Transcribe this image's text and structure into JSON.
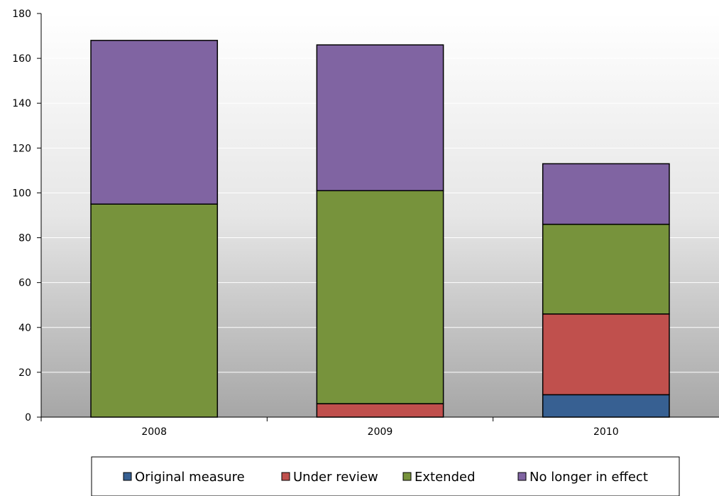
{
  "chart_data": {
    "type": "bar",
    "stacked": true,
    "categories": [
      "2008",
      "2009",
      "2010"
    ],
    "series": [
      {
        "name": "Original measure",
        "color": "#376092",
        "values": [
          0,
          0,
          10
        ]
      },
      {
        "name": "Under review",
        "color": "#C0504D",
        "values": [
          0,
          6,
          36
        ]
      },
      {
        "name": "Extended",
        "color": "#77933C",
        "values": [
          95,
          95,
          40
        ]
      },
      {
        "name": "No longer in effect",
        "color": "#8064A2",
        "values": [
          73,
          65,
          27
        ]
      }
    ],
    "ylim": [
      0,
      180
    ],
    "yticks": [
      "0",
      "20",
      "40",
      "60",
      "80",
      "100",
      "120",
      "140",
      "160",
      "180"
    ],
    "grid": true,
    "legend_position": "bottom"
  }
}
